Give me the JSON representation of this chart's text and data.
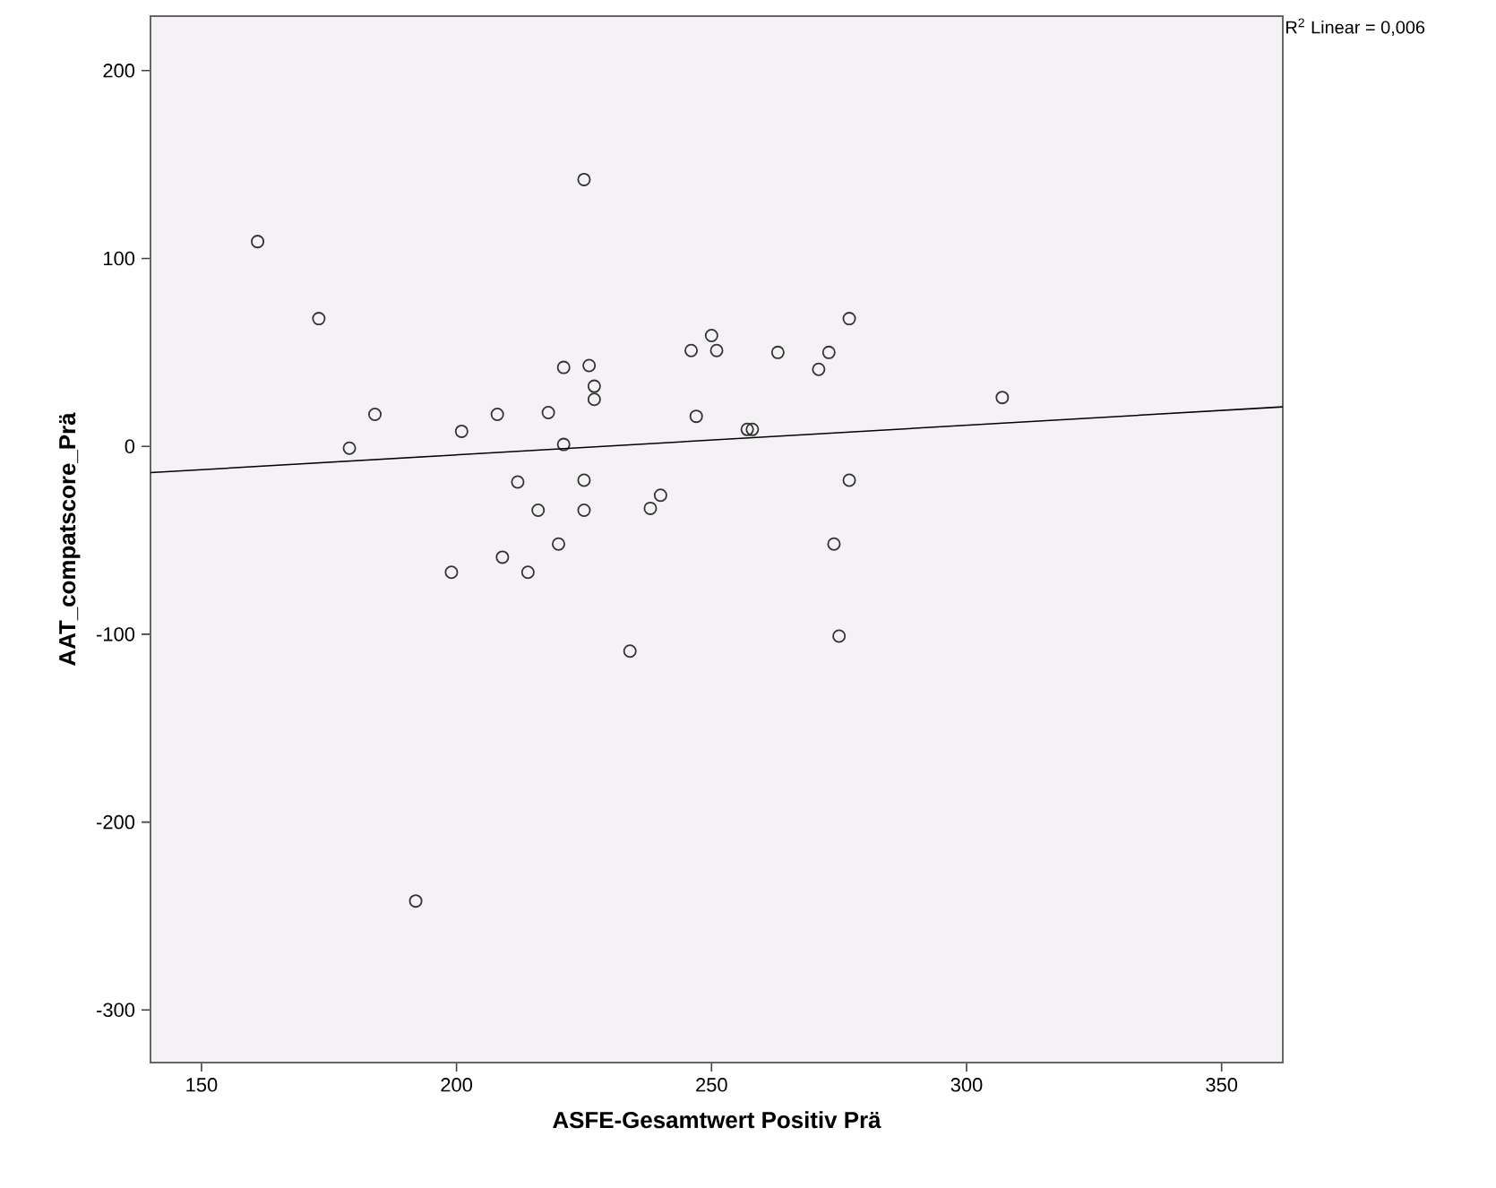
{
  "chart_data": {
    "type": "scatter",
    "xlabel": "ASFE-Gesamtwert Positiv Prä",
    "ylabel": "AAT_compatscore_Prä",
    "annotations": [
      "R$^{2}$ Linear = 0,006"
    ],
    "xlim": [
      140,
      362
    ],
    "ylim": [
      -328,
      229
    ],
    "xticks": [
      150,
      200,
      250,
      300,
      350
    ],
    "yticks": [
      -300,
      -200,
      -100,
      0,
      100,
      200
    ],
    "grid": false,
    "series": [
      {
        "marker": "circle",
        "color": "#333333",
        "x": [
          161,
          173,
          184,
          179,
          201,
          208,
          218,
          221,
          221,
          225,
          226,
          227,
          227,
          212,
          225,
          216,
          225,
          240,
          238,
          220,
          209,
          214,
          199,
          246,
          250,
          251,
          247,
          263,
          273,
          271,
          277,
          307,
          257,
          258,
          277,
          274,
          275,
          234,
          192
        ],
        "values": [
          109,
          68,
          17,
          -1,
          8,
          17,
          18,
          42,
          1,
          142,
          43,
          32,
          25,
          -19,
          -18,
          -34,
          -34,
          -26,
          -33,
          -52,
          -59,
          -67,
          -67,
          51,
          59,
          51,
          16,
          50,
          50,
          41,
          68,
          26,
          9,
          9,
          -18,
          -52,
          -101,
          -109,
          -242
        ]
      },
      {
        "type": "line",
        "marker": "none",
        "line_style": "solid",
        "color": "#000000",
        "x": [
          140,
          362
        ],
        "values": [
          -14,
          21
        ]
      }
    ]
  }
}
